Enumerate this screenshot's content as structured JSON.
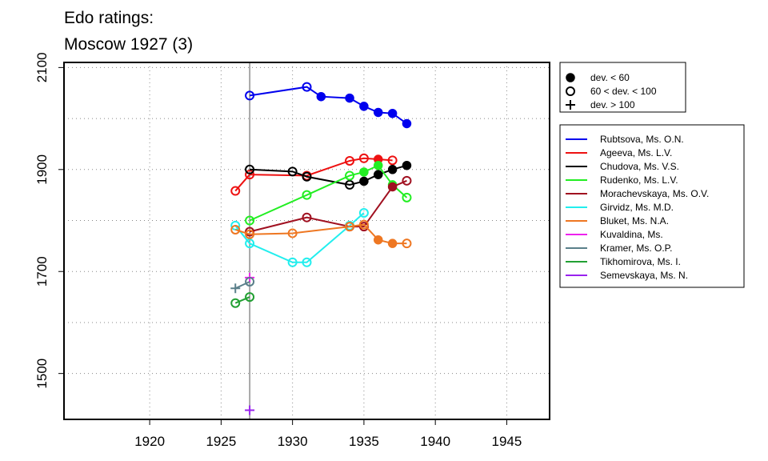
{
  "chart_data": {
    "type": "line",
    "title_lines": [
      "Edo ratings:",
      "Moscow 1927 (3)"
    ],
    "xlim": [
      1914,
      1948
    ],
    "ylim": [
      1410,
      2110
    ],
    "x_ticks": [
      1920,
      1925,
      1930,
      1935,
      1940,
      1945
    ],
    "y_ticks": [
      1500,
      1700,
      1900,
      2100
    ],
    "grid": true,
    "vertical_marker_x": 1927,
    "marker_legend": [
      {
        "marker": "filled",
        "label": "dev. < 60"
      },
      {
        "marker": "open",
        "label": "60 < dev. < 100"
      },
      {
        "marker": "plus",
        "label": "dev. > 100"
      }
    ],
    "series": [
      {
        "name": "Rubtsova, Ms. O.N.",
        "color": "#0000ee",
        "points": [
          {
            "x": 1927,
            "y": 2045,
            "m": "open"
          },
          {
            "x": 1931,
            "y": 2062,
            "m": "open"
          },
          {
            "x": 1932,
            "y": 2043,
            "m": "filled"
          },
          {
            "x": 1934,
            "y": 2040,
            "m": "filled"
          },
          {
            "x": 1935,
            "y": 2024,
            "m": "filled"
          },
          {
            "x": 1936,
            "y": 2012,
            "m": "filled"
          },
          {
            "x": 1937,
            "y": 2010,
            "m": "filled"
          },
          {
            "x": 1938,
            "y": 1990,
            "m": "filled"
          }
        ]
      },
      {
        "name": "Ageeva, Ms. L.V.",
        "color": "#ee1111",
        "points": [
          {
            "x": 1926,
            "y": 1858,
            "m": "open"
          },
          {
            "x": 1927,
            "y": 1890,
            "m": "open"
          },
          {
            "x": 1931,
            "y": 1888,
            "m": "open"
          },
          {
            "x": 1934,
            "y": 1917,
            "m": "open"
          },
          {
            "x": 1935,
            "y": 1922,
            "m": "open"
          },
          {
            "x": 1936,
            "y": 1920,
            "m": "filled"
          },
          {
            "x": 1937,
            "y": 1918,
            "m": "open"
          }
        ]
      },
      {
        "name": "Chudova, Ms. V.S.",
        "color": "#000000",
        "points": [
          {
            "x": 1927,
            "y": 1900,
            "m": "open"
          },
          {
            "x": 1930,
            "y": 1896,
            "m": "open"
          },
          {
            "x": 1931,
            "y": 1886,
            "m": "open"
          },
          {
            "x": 1934,
            "y": 1870,
            "m": "open"
          },
          {
            "x": 1935,
            "y": 1877,
            "m": "filled"
          },
          {
            "x": 1936,
            "y": 1890,
            "m": "filled"
          },
          {
            "x": 1937,
            "y": 1900,
            "m": "filled"
          },
          {
            "x": 1938,
            "y": 1908,
            "m": "filled"
          }
        ]
      },
      {
        "name": "Rudenko, Ms. L.V.",
        "color": "#22ee22",
        "points": [
          {
            "x": 1927,
            "y": 1800,
            "m": "open"
          },
          {
            "x": 1931,
            "y": 1850,
            "m": "open"
          },
          {
            "x": 1934,
            "y": 1888,
            "m": "open"
          },
          {
            "x": 1935,
            "y": 1895,
            "m": "filled"
          },
          {
            "x": 1936,
            "y": 1908,
            "m": "filled"
          },
          {
            "x": 1937,
            "y": 1870,
            "m": "filled"
          },
          {
            "x": 1938,
            "y": 1845,
            "m": "open"
          }
        ]
      },
      {
        "name": "Morachevskaya, Ms. O.V.",
        "color": "#a01020",
        "points": [
          {
            "x": 1927,
            "y": 1778,
            "m": "open"
          },
          {
            "x": 1931,
            "y": 1806,
            "m": "open"
          },
          {
            "x": 1934,
            "y": 1788,
            "m": "open"
          },
          {
            "x": 1935,
            "y": 1788,
            "m": "open"
          },
          {
            "x": 1937,
            "y": 1866,
            "m": "filled"
          },
          {
            "x": 1938,
            "y": 1878,
            "m": "open"
          }
        ]
      },
      {
        "name": "Girvidz, Ms. M.D.",
        "color": "#22eeee",
        "points": [
          {
            "x": 1926,
            "y": 1790,
            "m": "open"
          },
          {
            "x": 1927,
            "y": 1755,
            "m": "open"
          },
          {
            "x": 1930,
            "y": 1718,
            "m": "open"
          },
          {
            "x": 1931,
            "y": 1718,
            "m": "open"
          },
          {
            "x": 1934,
            "y": 1790,
            "m": "open"
          },
          {
            "x": 1935,
            "y": 1815,
            "m": "open"
          }
        ]
      },
      {
        "name": "Bluket, Ms. N.A.",
        "color": "#ee7722",
        "points": [
          {
            "x": 1926,
            "y": 1782,
            "m": "open"
          },
          {
            "x": 1927,
            "y": 1773,
            "m": "open"
          },
          {
            "x": 1930,
            "y": 1775,
            "m": "open"
          },
          {
            "x": 1934,
            "y": 1788,
            "m": "open"
          },
          {
            "x": 1935,
            "y": 1792,
            "m": "open"
          },
          {
            "x": 1936,
            "y": 1762,
            "m": "filled"
          },
          {
            "x": 1937,
            "y": 1755,
            "m": "filled"
          },
          {
            "x": 1938,
            "y": 1755,
            "m": "open"
          }
        ]
      },
      {
        "name": "Kuvaldina, Ms.",
        "color": "#ee22ee",
        "points": [
          {
            "x": 1927,
            "y": 1688,
            "m": "plus"
          }
        ]
      },
      {
        "name": "Kramer, Ms. O.P.",
        "color": "#5a7f8a",
        "points": [
          {
            "x": 1926,
            "y": 1667,
            "m": "plus"
          },
          {
            "x": 1927,
            "y": 1680,
            "m": "open"
          }
        ]
      },
      {
        "name": "Tikhomirova, Ms. I.",
        "color": "#22a033",
        "points": [
          {
            "x": 1926,
            "y": 1638,
            "m": "open"
          },
          {
            "x": 1927,
            "y": 1650,
            "m": "open"
          }
        ]
      },
      {
        "name": "Semevskaya, Ms. N.",
        "color": "#9922ee",
        "points": [
          {
            "x": 1927,
            "y": 1428,
            "m": "plus"
          }
        ]
      }
    ]
  }
}
